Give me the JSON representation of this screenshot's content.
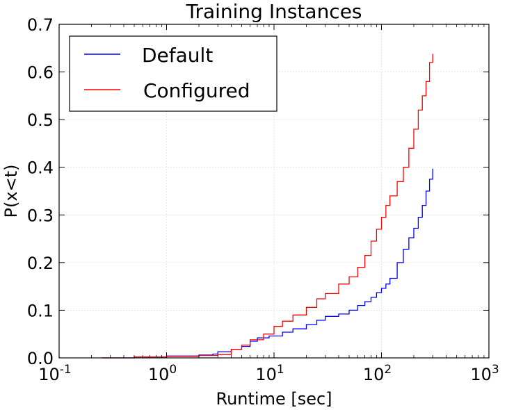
{
  "chart_data": {
    "type": "line",
    "title": "Training Instances",
    "xlabel": "Runtime [sec]",
    "ylabel": "P(x<t)",
    "xscale": "log",
    "xlim": [
      0.1,
      1000
    ],
    "ylim": [
      0.0,
      0.7
    ],
    "grid": true,
    "legend_position": "top-left",
    "x_ticks": [
      {
        "base": "10",
        "exp": "-1"
      },
      {
        "base": "10",
        "exp": "0"
      },
      {
        "base": "10",
        "exp": "1"
      },
      {
        "base": "10",
        "exp": "2"
      },
      {
        "base": "10",
        "exp": "3"
      }
    ],
    "y_ticks": [
      "0.0",
      "0.1",
      "0.2",
      "0.3",
      "0.4",
      "0.5",
      "0.6",
      "0.7"
    ],
    "series": [
      {
        "name": "Default",
        "color": "#0000ff",
        "points": [
          [
            0.25,
            0.0
          ],
          [
            0.5,
            0.002
          ],
          [
            1.0,
            0.004
          ],
          [
            2.0,
            0.006
          ],
          [
            2.7,
            0.008
          ],
          [
            3.0,
            0.013
          ],
          [
            4.0,
            0.018
          ],
          [
            5.0,
            0.024
          ],
          [
            6.0,
            0.035
          ],
          [
            7.0,
            0.042
          ],
          [
            9.0,
            0.046
          ],
          [
            12.0,
            0.054
          ],
          [
            15.0,
            0.061
          ],
          [
            20.0,
            0.07
          ],
          [
            25.0,
            0.079
          ],
          [
            30.0,
            0.087
          ],
          [
            40.0,
            0.092
          ],
          [
            50.0,
            0.1
          ],
          [
            60.0,
            0.11
          ],
          [
            70.0,
            0.118
          ],
          [
            80.0,
            0.127
          ],
          [
            90.0,
            0.137
          ],
          [
            100.0,
            0.146
          ],
          [
            110.0,
            0.155
          ],
          [
            120.0,
            0.167
          ],
          [
            140.0,
            0.2
          ],
          [
            160.0,
            0.228
          ],
          [
            180.0,
            0.252
          ],
          [
            200.0,
            0.272
          ],
          [
            220.0,
            0.295
          ],
          [
            240.0,
            0.32
          ],
          [
            260.0,
            0.35
          ],
          [
            280.0,
            0.375
          ],
          [
            300.0,
            0.397
          ]
        ]
      },
      {
        "name": "Configured",
        "color": "#ff0000",
        "points": [
          [
            0.25,
            0.0
          ],
          [
            0.5,
            0.002
          ],
          [
            1.0,
            0.003
          ],
          [
            2.0,
            0.005
          ],
          [
            3.0,
            0.007
          ],
          [
            4.0,
            0.018
          ],
          [
            5.0,
            0.027
          ],
          [
            6.0,
            0.038
          ],
          [
            8.0,
            0.05
          ],
          [
            10.0,
            0.066
          ],
          [
            12.0,
            0.077
          ],
          [
            15.0,
            0.09
          ],
          [
            20.0,
            0.106
          ],
          [
            25.0,
            0.124
          ],
          [
            30.0,
            0.135
          ],
          [
            40.0,
            0.155
          ],
          [
            50.0,
            0.17
          ],
          [
            60.0,
            0.19
          ],
          [
            70.0,
            0.215
          ],
          [
            80.0,
            0.245
          ],
          [
            90.0,
            0.27
          ],
          [
            100.0,
            0.295
          ],
          [
            110.0,
            0.32
          ],
          [
            120.0,
            0.34
          ],
          [
            140.0,
            0.37
          ],
          [
            160.0,
            0.4
          ],
          [
            180.0,
            0.44
          ],
          [
            200.0,
            0.48
          ],
          [
            220.0,
            0.52
          ],
          [
            240.0,
            0.55
          ],
          [
            260.0,
            0.58
          ],
          [
            280.0,
            0.62
          ],
          [
            300.0,
            0.638
          ]
        ]
      }
    ]
  }
}
